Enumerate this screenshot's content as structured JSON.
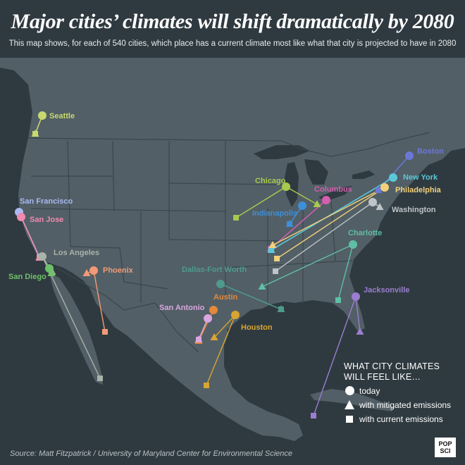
{
  "title": "Major cities’ climates  will shift dramatically by 2080",
  "subtitle": "This map shows, for each of 540 cities, which place has a current climate most like what that city is projected to have in 2080",
  "source": "Source: Matt Fitzpatrick / University of Maryland Center for Environmental Science",
  "logo": {
    "line1": "POP",
    "line2": "SCI"
  },
  "legend": {
    "title": "WHAT CITY CLIMATES WILL FEEL LIKE…",
    "items": [
      {
        "symbol": "circle",
        "label": "today"
      },
      {
        "symbol": "triangle",
        "label": "with mitigated emissions"
      },
      {
        "symbol": "square",
        "label": "with current emissions"
      }
    ]
  },
  "colors": {
    "background": "#2f3a40",
    "land": "#525f66",
    "border": "#3a464c"
  },
  "cities": [
    {
      "name": "Seattle",
      "color": "#c7d96e"
    },
    {
      "name": "San Francisco",
      "color": "#a9b9f2"
    },
    {
      "name": "San Jose",
      "color": "#f08ab0"
    },
    {
      "name": "Los Angeles",
      "color": "#a9b3a8"
    },
    {
      "name": "San Diego",
      "color": "#6fc06a"
    },
    {
      "name": "Phoenix",
      "color": "#f29a76"
    },
    {
      "name": "Dallas-Fort Worth",
      "color": "#4e9a8c"
    },
    {
      "name": "Austin",
      "color": "#e3893a"
    },
    {
      "name": "San Antonio",
      "color": "#d9a6e0"
    },
    {
      "name": "Houston",
      "color": "#d9a531"
    },
    {
      "name": "Chicago",
      "color": "#a7c950"
    },
    {
      "name": "Indianapolis",
      "color": "#3d8fd9"
    },
    {
      "name": "Columbus",
      "color": "#d35fae"
    },
    {
      "name": "Boston",
      "color": "#6c78d6"
    },
    {
      "name": "New York",
      "color": "#5ac8d8"
    },
    {
      "name": "Philadelphia",
      "color": "#f2d07a"
    },
    {
      "name": "Washington",
      "color": "#bfc4c8"
    },
    {
      "name": "Charlotte",
      "color": "#5fbfa6"
    },
    {
      "name": "Jacksonville",
      "color": "#9a7ed0"
    }
  ]
}
